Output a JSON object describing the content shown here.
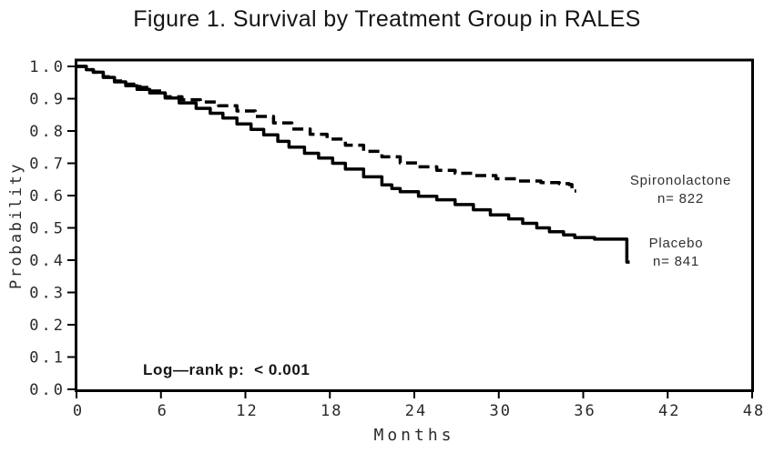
{
  "figure": {
    "title": "Figure 1. Survival by Treatment Group in RALES"
  },
  "chart_data": {
    "type": "line",
    "subtype": "kaplan-meier-step",
    "title": "Figure 1. Survival by Treatment Group in RALES",
    "xlabel": "Months",
    "ylabel": "Probability",
    "xlim": [
      0,
      48
    ],
    "ylim": [
      0.0,
      1.0
    ],
    "x_ticks": [
      0,
      6,
      12,
      18,
      24,
      30,
      36,
      42,
      48
    ],
    "y_ticks": [
      0.0,
      0.1,
      0.2,
      0.3,
      0.4,
      0.5,
      0.6,
      0.7,
      0.8,
      0.9,
      1.0
    ],
    "grid": false,
    "frame": "full-box",
    "annotation": "Log—rank p:  < 0.001",
    "colors": {
      "curves": "#000000",
      "axis": "#000000",
      "tick_text": "#2a2a2a",
      "legend_text": "#303030"
    },
    "legend_position": "right-of-curve-ends",
    "series": [
      {
        "name": "Spironolactone",
        "n_label": "n= 822",
        "line_style": "dashed",
        "points": [
          [
            0,
            1.0
          ],
          [
            0.7,
            0.99
          ],
          [
            1.2,
            0.982
          ],
          [
            1.9,
            0.968
          ],
          [
            2.7,
            0.955
          ],
          [
            3.5,
            0.945
          ],
          [
            4.5,
            0.935
          ],
          [
            5.3,
            0.924
          ],
          [
            6.3,
            0.906
          ],
          [
            7.5,
            0.897
          ],
          [
            8.8,
            0.89
          ],
          [
            10.1,
            0.878
          ],
          [
            11.4,
            0.862
          ],
          [
            12.7,
            0.845
          ],
          [
            14.0,
            0.825
          ],
          [
            15.3,
            0.806
          ],
          [
            16.6,
            0.79
          ],
          [
            17.8,
            0.775
          ],
          [
            19.1,
            0.756
          ],
          [
            20.4,
            0.737
          ],
          [
            21.7,
            0.72
          ],
          [
            23.0,
            0.701
          ],
          [
            24.3,
            0.689
          ],
          [
            25.6,
            0.678
          ],
          [
            26.9,
            0.669
          ],
          [
            28.2,
            0.662
          ],
          [
            29.8,
            0.652
          ],
          [
            31.4,
            0.645
          ],
          [
            33.0,
            0.64
          ],
          [
            34.3,
            0.637
          ],
          [
            35.0,
            0.634
          ],
          [
            35.2,
            0.614
          ],
          [
            35.5,
            0.614
          ]
        ]
      },
      {
        "name": "Placebo",
        "n_label": "n= 841",
        "line_style": "solid",
        "points": [
          [
            0,
            1.0
          ],
          [
            0.7,
            0.99
          ],
          [
            1.2,
            0.982
          ],
          [
            1.9,
            0.966
          ],
          [
            2.7,
            0.952
          ],
          [
            3.5,
            0.94
          ],
          [
            4.3,
            0.929
          ],
          [
            5.2,
            0.918
          ],
          [
            6.3,
            0.902
          ],
          [
            7.3,
            0.887
          ],
          [
            8.5,
            0.87
          ],
          [
            9.5,
            0.855
          ],
          [
            10.4,
            0.84
          ],
          [
            11.4,
            0.822
          ],
          [
            12.4,
            0.805
          ],
          [
            13.3,
            0.788
          ],
          [
            14.3,
            0.768
          ],
          [
            15.1,
            0.75
          ],
          [
            16.2,
            0.731
          ],
          [
            17.2,
            0.716
          ],
          [
            18.2,
            0.7
          ],
          [
            19.1,
            0.682
          ],
          [
            20.4,
            0.658
          ],
          [
            21.7,
            0.633
          ],
          [
            22.4,
            0.622
          ],
          [
            23.0,
            0.612
          ],
          [
            24.3,
            0.598
          ],
          [
            25.6,
            0.587
          ],
          [
            26.9,
            0.572
          ],
          [
            28.2,
            0.556
          ],
          [
            29.4,
            0.54
          ],
          [
            30.7,
            0.528
          ],
          [
            31.7,
            0.514
          ],
          [
            32.7,
            0.5
          ],
          [
            33.6,
            0.488
          ],
          [
            34.6,
            0.478
          ],
          [
            35.4,
            0.47
          ],
          [
            36.8,
            0.465
          ],
          [
            39.1,
            0.394
          ],
          [
            39.3,
            0.394
          ]
        ]
      }
    ]
  }
}
